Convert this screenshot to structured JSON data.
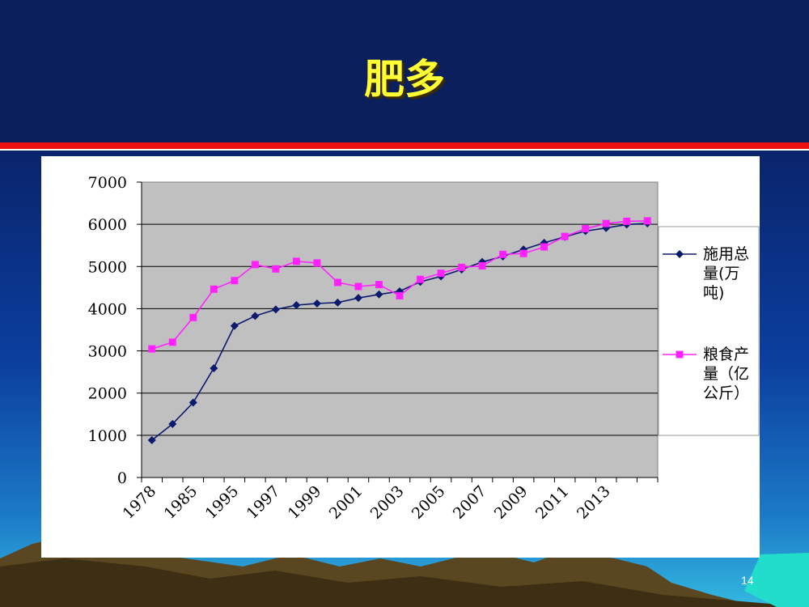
{
  "slide": {
    "title": "肥多",
    "page_number": "14"
  },
  "colors": {
    "header_bg": "#0a1f5c",
    "title_text": "#ffff33",
    "rule_red": "#ee1111",
    "plot_bg": "#c0c0c0",
    "series1": "#0a1a6e",
    "series2": "#ff22ff"
  },
  "chart_data": {
    "type": "line",
    "title": "",
    "xlabel": "",
    "ylabel": "",
    "ylim": [
      0,
      7000
    ],
    "yticks": [
      0,
      1000,
      2000,
      3000,
      4000,
      5000,
      6000,
      7000
    ],
    "x": [
      "1978",
      "1980",
      "1985",
      "1990",
      "1995",
      "1996",
      "1997",
      "1998",
      "1999",
      "2000",
      "2001",
      "2002",
      "2003",
      "2004",
      "2005",
      "2006",
      "2007",
      "2008",
      "2009",
      "2010",
      "2011",
      "2012",
      "2013",
      "2014",
      "2015"
    ],
    "x_tick_labels": [
      "1978",
      "1985",
      "1995",
      "1997",
      "1999",
      "2001",
      "2003",
      "2005",
      "2007",
      "2009",
      "2011",
      "2013"
    ],
    "grid": "horizontal",
    "legend_position": "right",
    "series": [
      {
        "name": "施用总量(万吨)",
        "marker": "diamond",
        "values": [
          884,
          1269,
          1776,
          2590,
          3594,
          3828,
          3981,
          4084,
          4124,
          4146,
          4254,
          4339,
          4412,
          4637,
          4766,
          4928,
          5108,
          5239,
          5404,
          5562,
          5704,
          5839,
          5912,
          5996,
          6023
        ]
      },
      {
        "name": "粮食产量（亿公斤）",
        "marker": "square",
        "values": [
          3048,
          3206,
          3791,
          4462,
          4666,
          5045,
          4942,
          5123,
          5084,
          4622,
          4526,
          4571,
          4307,
          4695,
          4840,
          4980,
          5016,
          5287,
          5308,
          5464,
          5712,
          5896,
          6019,
          6071,
          6082
        ]
      }
    ]
  }
}
